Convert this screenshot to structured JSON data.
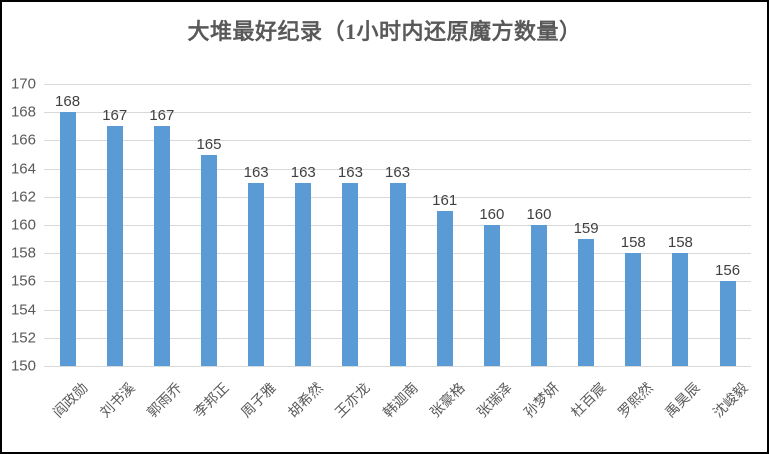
{
  "title": "大堆最好纪录（1小时内还原魔方数量）",
  "chart_data": {
    "type": "bar",
    "title": "大堆最好纪录（1小时内还原魔方数量）",
    "categories": [
      "阎政勋",
      "刘书溪",
      "郭雨乔",
      "李邦正",
      "周子雅",
      "胡希然",
      "王亦龙",
      "韩迦南",
      "张豪格",
      "张瑞泽",
      "孙梦妍",
      "杜百宸",
      "罗熙然",
      "禹昊辰",
      "沈峻毅"
    ],
    "values": [
      168,
      167,
      167,
      165,
      163,
      163,
      163,
      163,
      161,
      160,
      160,
      159,
      158,
      158,
      156
    ],
    "xlabel": "",
    "ylabel": "",
    "ylim": [
      150,
      170
    ],
    "yticks": [
      150,
      152,
      154,
      156,
      158,
      160,
      162,
      164,
      166,
      168,
      170
    ],
    "grid": true,
    "legend": false,
    "data_labels": true,
    "category_label_rotation_deg": 45,
    "colors": {
      "bar": "#5b9bd5",
      "gridline": "#d9d9d9",
      "axis_labels": "#595959",
      "data_labels": "#404040",
      "title": "#595959",
      "background": "#ffffff",
      "border": "#000000"
    }
  }
}
